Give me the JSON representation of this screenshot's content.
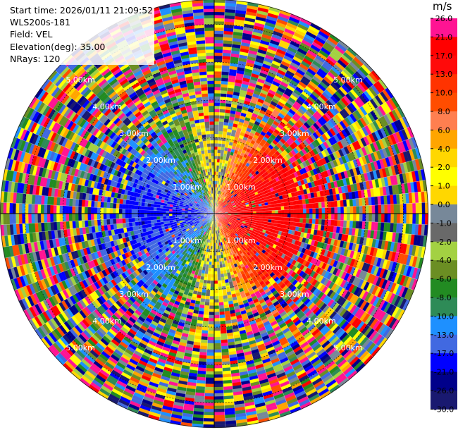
{
  "header": {
    "start_time": "Start time: 2026/01/11 21:09:52",
    "instrument": "WLS200s-181",
    "field": "Field: VEL",
    "elevation": "Elevation(deg): 35.00",
    "nrays": "NRays: 120"
  },
  "colorbar": {
    "unit": "m/s",
    "ticks": [
      "26.0",
      "21.0",
      "17.0",
      "13.0",
      "10.0",
      "8.0",
      "6.0",
      "4.0",
      "2.0",
      "1.0",
      "0.0",
      "-1.0",
      "-2.0",
      "-4.0",
      "-6.0",
      "-8.0",
      "-10.0",
      "-13.0",
      "-17.0",
      "-21.0",
      "-26.0",
      "-30.0"
    ],
    "colors": [
      "#ff1493",
      "#ff0000",
      "#ff0a0a",
      "#ff3300",
      "#ff4d00",
      "#ff7f50",
      "#ffa500",
      "#ffd700",
      "#ffff00",
      "#ffd700",
      "#778899",
      "#696969",
      "#a3d142",
      "#6b8e23",
      "#228b22",
      "#2e8b57",
      "#1e90ff",
      "#4169e1",
      "#0000ff",
      "#00008b",
      "#191970"
    ]
  },
  "chart_data": {
    "type": "heatmap",
    "projection": "polar-ppi",
    "field": "VEL",
    "units": "m/s",
    "elevation_deg": 35.0,
    "n_rays": 120,
    "range_rings_km": [
      1.0,
      2.0,
      3.0,
      4.0,
      5.0
    ],
    "range_ring_labels": [
      "1.00km",
      "2.00km",
      "3.00km",
      "4.00km",
      "5.00km"
    ],
    "color_scale_min": -30.0,
    "color_scale_max": 26.0
  }
}
